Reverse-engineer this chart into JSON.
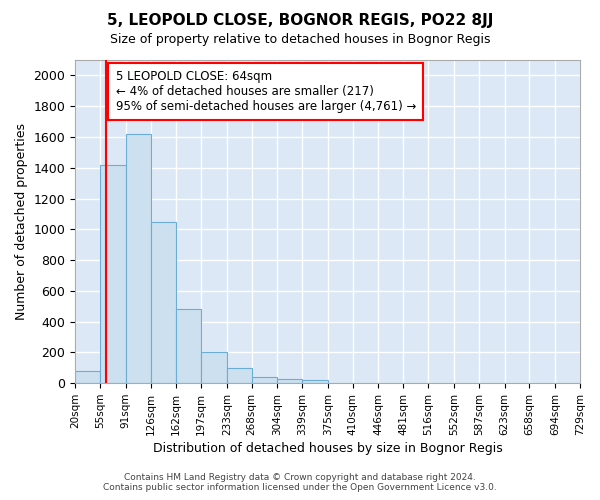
{
  "title": "5, LEOPOLD CLOSE, BOGNOR REGIS, PO22 8JJ",
  "subtitle": "Size of property relative to detached houses in Bognor Regis",
  "xlabel": "Distribution of detached houses by size in Bognor Regis",
  "ylabel": "Number of detached properties",
  "bin_edges": [
    20,
    55,
    91,
    126,
    162,
    197,
    233,
    268,
    304,
    339,
    375,
    410,
    446,
    481,
    516,
    552,
    587,
    623,
    658,
    694,
    729
  ],
  "bar_heights": [
    80,
    1420,
    1620,
    1050,
    480,
    205,
    100,
    40,
    30,
    20,
    0,
    0,
    0,
    0,
    0,
    0,
    0,
    0,
    0,
    0
  ],
  "bar_color": "#cce0f0",
  "bar_edge_color": "#6aadd5",
  "red_line_x": 64,
  "ylim": [
    0,
    2100
  ],
  "yticks": [
    0,
    200,
    400,
    600,
    800,
    1000,
    1200,
    1400,
    1600,
    1800,
    2000
  ],
  "annotation_title": "5 LEOPOLD CLOSE: 64sqm",
  "annotation_line1": "← 4% of detached houses are smaller (217)",
  "annotation_line2": "95% of semi-detached houses are larger (4,761) →",
  "fig_background_color": "#ffffff",
  "plot_background_color": "#dce8f5",
  "grid_color": "#ffffff",
  "footer_line1": "Contains HM Land Registry data © Crown copyright and database right 2024.",
  "footer_line2": "Contains public sector information licensed under the Open Government Licence v3.0."
}
